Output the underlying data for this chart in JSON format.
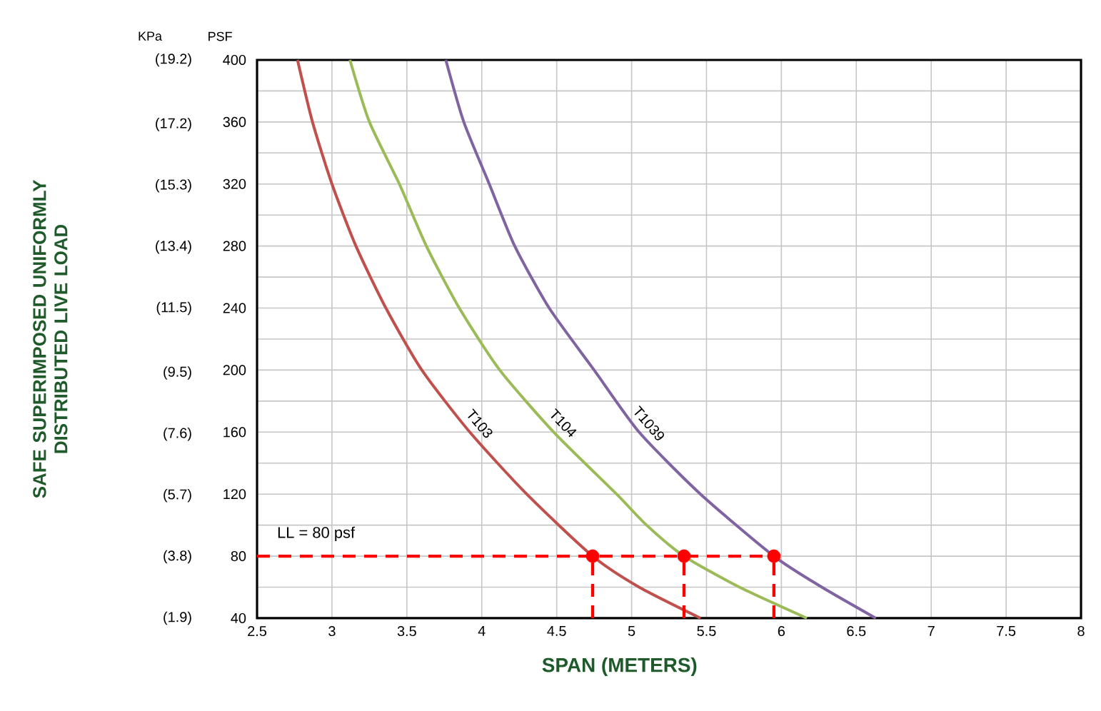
{
  "chart_data": {
    "type": "line",
    "xlabel": "SPAN (METERS)",
    "ylabel": "PSF",
    "y2label": "SAFE SUPERIMPOSED UNIFORMLY DISTRIBUTED LIVE LOAD",
    "xlim": [
      2.5,
      8
    ],
    "xticks": [
      2.5,
      3,
      3.5,
      4,
      4.5,
      5,
      5.5,
      6,
      6.5,
      7,
      7.5,
      8
    ],
    "ylim": [
      40,
      400
    ],
    "yticks": [
      40,
      80,
      120,
      160,
      200,
      240,
      280,
      320,
      360,
      400
    ],
    "y2lim": [
      1.9,
      19.2
    ],
    "y2ticks": [
      {
        "value": 1.9,
        "label": "(1.9)"
      },
      {
        "value": 3.8,
        "label": "(3.8)"
      },
      {
        "value": 5.7,
        "label": "(5.7)"
      },
      {
        "value": 7.6,
        "label": "(7.6)"
      },
      {
        "value": 9.5,
        "label": "(9.5)"
      },
      {
        "value": 11.5,
        "label": "(11.5)"
      },
      {
        "value": 13.4,
        "label": "(13.4)"
      },
      {
        "value": 15.3,
        "label": "(15.3)"
      },
      {
        "value": 17.2,
        "label": "(17.2)"
      },
      {
        "value": 19.2,
        "label": "(19.2)"
      }
    ],
    "grid": true,
    "series": [
      {
        "name": "T103",
        "color": "#c0504d",
        "x": [
          2.77,
          2.87,
          3.0,
          3.16,
          3.36,
          3.6,
          3.92,
          4.3,
          4.74,
          5.05,
          5.46
        ],
        "values": [
          400,
          360,
          320,
          280,
          240,
          200,
          160,
          120,
          80,
          60,
          40
        ]
      },
      {
        "name": "T104",
        "color": "#9bbb59",
        "x": [
          3.12,
          3.25,
          3.45,
          3.63,
          3.85,
          4.12,
          4.48,
          4.9,
          5.1,
          5.35,
          5.72,
          6.17
        ],
        "values": [
          400,
          360,
          320,
          280,
          240,
          200,
          160,
          120,
          100,
          80,
          60,
          40
        ]
      },
      {
        "name": "T1039",
        "color": "#8064a2",
        "x": [
          3.76,
          3.88,
          4.05,
          4.22,
          4.45,
          4.75,
          5.05,
          5.46,
          5.95,
          6.27,
          6.63
        ],
        "values": [
          400,
          360,
          320,
          280,
          240,
          200,
          160,
          120,
          80,
          60,
          40
        ]
      },
      {
        "color": "#ff0000",
        "line_style": "dashed",
        "x": [
          2.5,
          5.95
        ],
        "values": [
          80,
          80
        ]
      },
      {
        "color": "#ff0000",
        "line_style": "dashed",
        "x": [
          4.74,
          4.74
        ],
        "values": [
          40,
          80
        ]
      },
      {
        "color": "#ff0000",
        "line_style": "dashed",
        "x": [
          5.35,
          5.35
        ],
        "values": [
          40,
          80
        ]
      },
      {
        "color": "#ff0000",
        "line_style": "dashed",
        "x": [
          5.95,
          5.95
        ],
        "values": [
          40,
          80
        ]
      },
      {
        "type": "scatter",
        "marker": "circle",
        "color": "#ff0000",
        "x": [
          4.74,
          5.35,
          5.95
        ],
        "values": [
          80,
          80,
          80
        ]
      }
    ],
    "annotations": [
      {
        "text": "LL = 80 psf",
        "x": 2.6,
        "y": 80
      },
      "KPa"
    ]
  }
}
